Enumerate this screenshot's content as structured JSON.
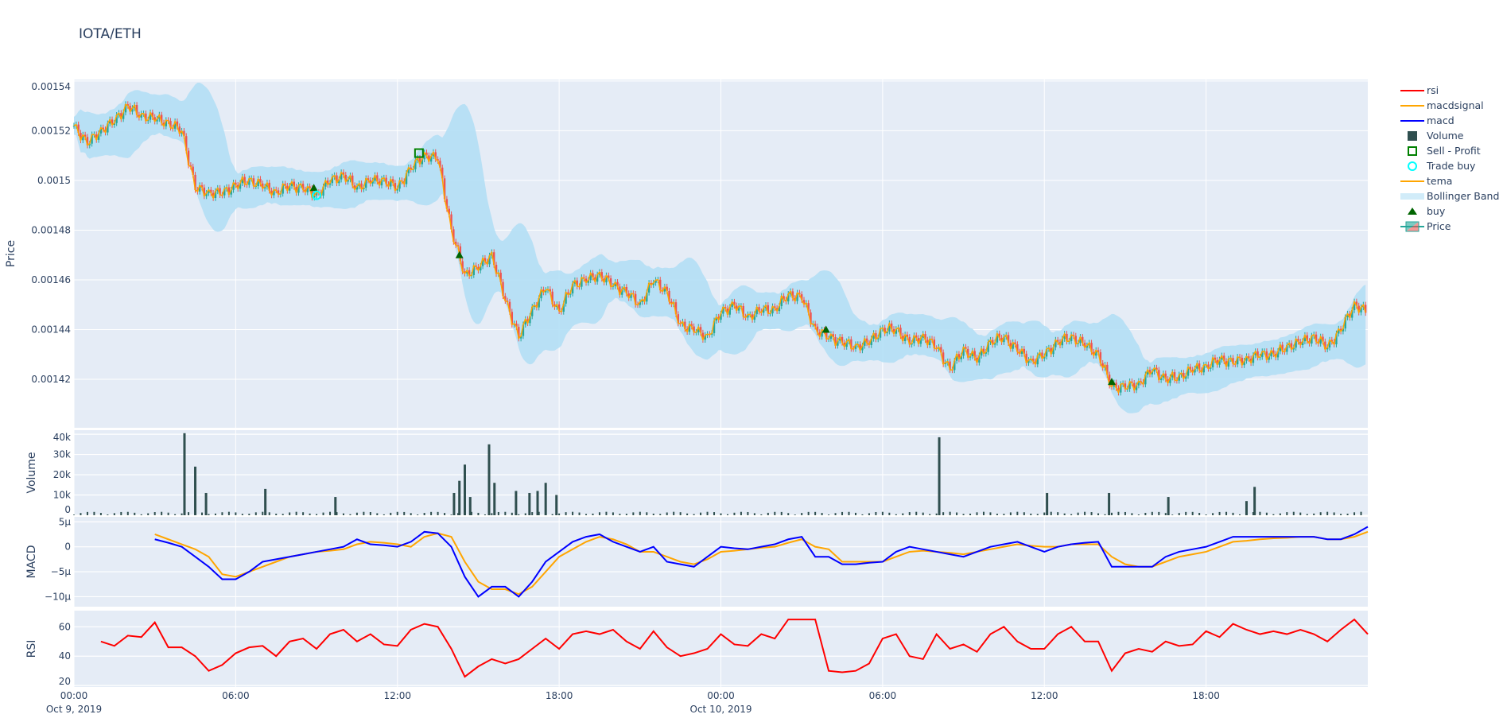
{
  "title": "IOTA/ETH",
  "legend": [
    {
      "name": "rsi",
      "color": "#ff0000",
      "symbol": "line"
    },
    {
      "name": "macdsignal",
      "color": "#ffa500",
      "symbol": "line"
    },
    {
      "name": "macd",
      "color": "#0000ff",
      "symbol": "line"
    },
    {
      "name": "Volume",
      "color": "#2f4f4f",
      "symbol": "bar"
    },
    {
      "name": "Sell - Profit",
      "color": "#008000",
      "symbol": "square-open"
    },
    {
      "name": "Trade buy",
      "color": "#00ffff",
      "symbol": "circle-open"
    },
    {
      "name": "tema",
      "color": "#ffa500",
      "symbol": "line"
    },
    {
      "name": "Bollinger Band",
      "color": "#b3dff5",
      "symbol": "fill"
    },
    {
      "name": "buy",
      "color": "#006400",
      "symbol": "triangle-up"
    },
    {
      "name": "Price",
      "color": "#26a69a",
      "symbol": "candlestick"
    }
  ],
  "chart_data": {
    "type": "candlestick",
    "x_range": [
      "2019-10-09 00:00",
      "2019-10-11 00:00"
    ],
    "x_ticks": [
      {
        "time": "2019-10-09 00:00",
        "label": "00:00",
        "sub": "Oct 9, 2019"
      },
      {
        "time": "2019-10-09 06:00",
        "label": "06:00",
        "sub": ""
      },
      {
        "time": "2019-10-09 12:00",
        "label": "12:00",
        "sub": ""
      },
      {
        "time": "2019-10-09 18:00",
        "label": "18:00",
        "sub": ""
      },
      {
        "time": "2019-10-10 00:00",
        "label": "00:00",
        "sub": "Oct 10, 2019"
      },
      {
        "time": "2019-10-10 06:00",
        "label": "06:00",
        "sub": ""
      },
      {
        "time": "2019-10-10 12:00",
        "label": "12:00",
        "sub": ""
      },
      {
        "time": "2019-10-10 18:00",
        "label": "18:00",
        "sub": ""
      }
    ],
    "x_step_minutes": 30,
    "price": {
      "ylabel": "Price",
      "ylim": [
        0.0014005,
        0.0015406
      ],
      "ticks": [
        {
          "v": 0.00142,
          "label": "0.00142"
        },
        {
          "v": 0.00144,
          "label": "0.00144"
        },
        {
          "v": 0.00146,
          "label": "0.00146"
        },
        {
          "v": 0.00148,
          "label": "0.00148"
        },
        {
          "v": 0.0015,
          "label": "0.0015"
        },
        {
          "v": 0.00152,
          "label": "0.00152"
        },
        {
          "v": 0.00154,
          "label": "0.00154"
        }
      ],
      "close": [
        0.001522,
        0.001515,
        0.00152,
        0.001524,
        0.00153,
        0.001526,
        0.001525,
        0.001523,
        0.00152,
        0.001497,
        0.001495,
        0.001495,
        0.001498,
        0.0015,
        0.001498,
        0.001495,
        0.001498,
        0.001497,
        0.001494,
        0.0015,
        0.001502,
        0.001497,
        0.0015,
        0.0015,
        0.001497,
        0.001505,
        0.00151,
        0.001509,
        0.00148,
        0.001462,
        0.001465,
        0.00147,
        0.001452,
        0.001437,
        0.001448,
        0.001457,
        0.001447,
        0.001458,
        0.00146,
        0.001462,
        0.001458,
        0.001455,
        0.00145,
        0.00146,
        0.001455,
        0.001442,
        0.00144,
        0.001437,
        0.001447,
        0.00145,
        0.001445,
        0.001448,
        0.001448,
        0.001454,
        0.001453,
        0.00144,
        0.001437,
        0.001435,
        0.001433,
        0.001435,
        0.00144,
        0.00144,
        0.001435,
        0.001437,
        0.001433,
        0.001424,
        0.001432,
        0.001428,
        0.001435,
        0.001437,
        0.001432,
        0.001427,
        0.00143,
        0.001435,
        0.001437,
        0.001434,
        0.00143,
        0.001417,
        0.001417,
        0.001418,
        0.001424,
        0.00142,
        0.001421,
        0.001424,
        0.001425,
        0.001428,
        0.001427,
        0.001428,
        0.00143,
        0.00143,
        0.001433,
        0.001435,
        0.001437,
        0.001433,
        0.00144,
        0.00145,
        0.001447
      ],
      "buy": [
        {
          "time": "2019-10-09 08:54",
          "price": 0.001497
        },
        {
          "time": "2019-10-09 14:18",
          "price": 0.00147
        },
        {
          "time": "2019-10-10 03:54",
          "price": 0.00144
        },
        {
          "time": "2019-10-10 14:30",
          "price": 0.001419
        }
      ],
      "trade_buy": [
        {
          "time": "2019-10-09 09:00",
          "price": 0.001494
        }
      ],
      "sell_profit": [
        {
          "time": "2019-10-09 12:48",
          "price": 0.001511
        }
      ]
    },
    "volume": {
      "ylabel": "Volume",
      "ylim": [
        0,
        42000
      ],
      "ticks": [
        {
          "v": 0,
          "label": "0"
        },
        {
          "v": 10000,
          "label": "10k"
        },
        {
          "v": 20000,
          "label": "20k"
        },
        {
          "v": 30000,
          "label": "30k"
        },
        {
          "v": 40000,
          "label": "40k"
        }
      ],
      "bars": [
        [
          "2019-10-09 04:06",
          40500
        ],
        [
          "2019-10-09 04:30",
          24000
        ],
        [
          "2019-10-09 04:54",
          11000
        ],
        [
          "2019-10-09 07:06",
          13000
        ],
        [
          "2019-10-09 09:42",
          9000
        ],
        [
          "2019-10-09 14:06",
          11000
        ],
        [
          "2019-10-09 14:18",
          17000
        ],
        [
          "2019-10-09 14:30",
          25000
        ],
        [
          "2019-10-09 14:42",
          9000
        ],
        [
          "2019-10-09 15:24",
          35000
        ],
        [
          "2019-10-09 15:36",
          16000
        ],
        [
          "2019-10-09 16:24",
          12000
        ],
        [
          "2019-10-09 16:54",
          11000
        ],
        [
          "2019-10-09 17:12",
          12000
        ],
        [
          "2019-10-09 17:30",
          16000
        ],
        [
          "2019-10-09 17:54",
          10000
        ],
        [
          "2019-10-10 08:06",
          38500
        ],
        [
          "2019-10-10 12:06",
          11000
        ],
        [
          "2019-10-10 14:24",
          11000
        ],
        [
          "2019-10-10 16:36",
          9000
        ],
        [
          "2019-10-10 19:48",
          14000
        ],
        [
          "2019-10-10 19:30",
          7000
        ]
      ]
    },
    "macd": {
      "ylabel": "MACD",
      "ylim": [
        -12,
        6
      ],
      "ticks": [
        {
          "v": 5,
          "label": "5µ"
        },
        {
          "v": 0,
          "label": "0"
        },
        {
          "v": -5,
          "label": "−5µ"
        },
        {
          "v": -10,
          "label": "−10µ"
        }
      ],
      "unit": "µ",
      "macd": [
        null,
        null,
        null,
        null,
        null,
        null,
        1.5,
        0.8,
        0,
        -2,
        -4,
        -6.5,
        -6.5,
        -5,
        -3,
        -2.5,
        -2,
        -1.5,
        -1,
        -0.5,
        0,
        1.5,
        0.5,
        0.3,
        0,
        1,
        3,
        2.7,
        0,
        -6,
        -10,
        -8,
        -8,
        -10,
        -7,
        -3,
        -1,
        1,
        2,
        2.5,
        1,
        0,
        -1,
        0,
        -3,
        -3.5,
        -4,
        -2,
        0,
        -0.3,
        -0.5,
        0,
        0.5,
        1.5,
        2,
        -2,
        -2,
        -3.5,
        -3.5,
        -3.2,
        -3,
        -1,
        0,
        -0.5,
        -1,
        -1.5,
        -2,
        -1,
        0,
        0.5,
        1,
        0,
        -1,
        0,
        0.5,
        0.8,
        1,
        -4,
        -4,
        -4,
        -4,
        -2,
        -1,
        -0.5,
        0,
        1,
        2,
        2,
        2,
        2,
        2,
        2,
        2,
        1.5,
        1.5,
        2.5,
        4
      ],
      "signal": [
        null,
        null,
        null,
        null,
        null,
        null,
        2.5,
        1.5,
        0.5,
        -0.5,
        -2,
        -5.5,
        -6,
        -5,
        -4,
        -3,
        -2,
        -1.5,
        -1,
        -0.8,
        -0.5,
        0.5,
        1,
        0.8,
        0.5,
        0,
        2,
        2.7,
        2,
        -3,
        -7,
        -8.5,
        -8.5,
        -9.5,
        -8,
        -5,
        -2,
        -0.5,
        1,
        2,
        1.5,
        0.5,
        -1,
        -1,
        -2,
        -3,
        -3.5,
        -2.5,
        -1,
        -0.8,
        -0.5,
        -0.2,
        0,
        0.8,
        1.5,
        0,
        -0.5,
        -3,
        -3,
        -3,
        -3,
        -2,
        -1,
        -0.8,
        -1,
        -1.2,
        -1.5,
        -1,
        -0.5,
        0,
        0.5,
        0.2,
        0,
        0,
        0.5,
        0.5,
        0.5,
        -2,
        -3.5,
        -4,
        -4,
        -3,
        -2,
        -1.5,
        -1,
        0,
        1,
        1.2,
        1.5,
        1.7,
        1.8,
        2,
        2,
        1.5,
        1.5,
        2,
        3
      ]
    },
    "rsi": {
      "ylabel": "RSI",
      "ylim": [
        19,
        71
      ],
      "ticks": [
        {
          "v": 20,
          "label": "20"
        },
        {
          "v": 40,
          "label": "40"
        },
        {
          "v": 60,
          "label": "60"
        }
      ],
      "values": [
        null,
        null,
        50,
        47,
        54,
        53,
        63,
        46,
        46,
        40,
        30,
        34,
        42,
        46,
        47,
        40,
        50,
        52,
        45,
        55,
        58,
        50,
        55,
        48,
        47,
        58,
        62,
        60,
        45,
        26,
        33,
        38,
        35,
        38,
        45,
        52,
        45,
        55,
        57,
        55,
        58,
        50,
        45,
        57,
        46,
        40,
        42,
        45,
        55,
        48,
        47,
        55,
        52,
        65,
        65,
        65,
        30,
        29,
        30,
        35,
        52,
        55,
        40,
        38,
        55,
        45,
        48,
        43,
        55,
        60,
        50,
        45,
        45,
        55,
        60,
        50,
        50,
        30,
        42,
        45,
        43,
        50,
        47,
        48,
        57,
        53,
        62,
        58,
        55,
        57,
        55,
        58,
        55,
        50,
        58,
        65,
        55
      ]
    }
  }
}
